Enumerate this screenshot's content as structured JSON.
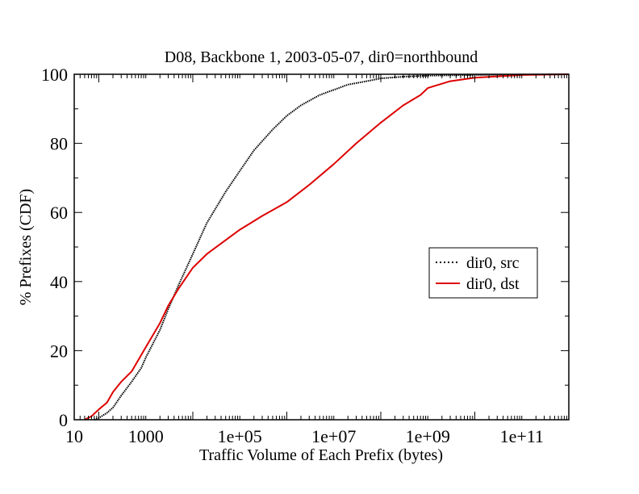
{
  "chart_data": {
    "type": "line",
    "title": "D08, Backbone 1, 2003-05-07, dir0=northbound",
    "xlabel": "Traffic Volume of Each Prefix (bytes)",
    "ylabel": "% Prefixes (CDF)",
    "x_scale": "log10",
    "xlim": [
      30,
      1000000000000
    ],
    "ylim": [
      0,
      100
    ],
    "x_tick_labels": [
      {
        "value": 10,
        "label": "10"
      },
      {
        "value": 1000,
        "label": "1000"
      },
      {
        "value": 100000,
        "label": "1e+05"
      },
      {
        "value": 10000000,
        "label": "1e+07"
      },
      {
        "value": 1000000000,
        "label": "1e+09"
      },
      {
        "value": 100000000000,
        "label": "1e+11"
      }
    ],
    "y_ticks": [
      0,
      20,
      40,
      60,
      80,
      100
    ],
    "legend_position": "right",
    "series": [
      {
        "name": "dir0, src",
        "color": "#000000",
        "style": "dotted",
        "x": [
          80,
          100,
          150,
          200,
          300,
          500,
          800,
          1000,
          2000,
          3000,
          5000,
          10000,
          20000,
          50000,
          100000,
          200000,
          500000,
          1000000,
          2000000,
          5000000,
          10000000,
          20000000,
          50000000,
          100000000,
          300000000,
          1000000000,
          10000000000,
          100000000000,
          1000000000000
        ],
        "y": [
          0,
          0.5,
          2,
          3.5,
          7,
          11,
          15,
          18,
          26,
          32,
          39,
          48,
          57,
          66,
          72,
          78,
          84,
          88,
          91,
          94,
          95.5,
          97,
          98,
          98.8,
          99.3,
          99.6,
          99.8,
          99.9,
          100
        ]
      },
      {
        "name": "dir0, dst",
        "color": "#dd0000",
        "style": "solid",
        "x": [
          50,
          70,
          100,
          150,
          200,
          300,
          500,
          1000,
          2000,
          3000,
          5000,
          10000,
          20000,
          50000,
          100000,
          300000,
          1000000,
          3000000,
          10000000,
          30000000,
          100000000,
          300000000,
          700000000,
          1000000000,
          3000000000,
          10000000000,
          100000000000,
          1000000000000
        ],
        "y": [
          0,
          1,
          3,
          5,
          8,
          11,
          14,
          21,
          28,
          33,
          38,
          44,
          48,
          52,
          55,
          59,
          63,
          68,
          74,
          80,
          86,
          91,
          94,
          96,
          98,
          99,
          99.8,
          100
        ]
      }
    ]
  }
}
